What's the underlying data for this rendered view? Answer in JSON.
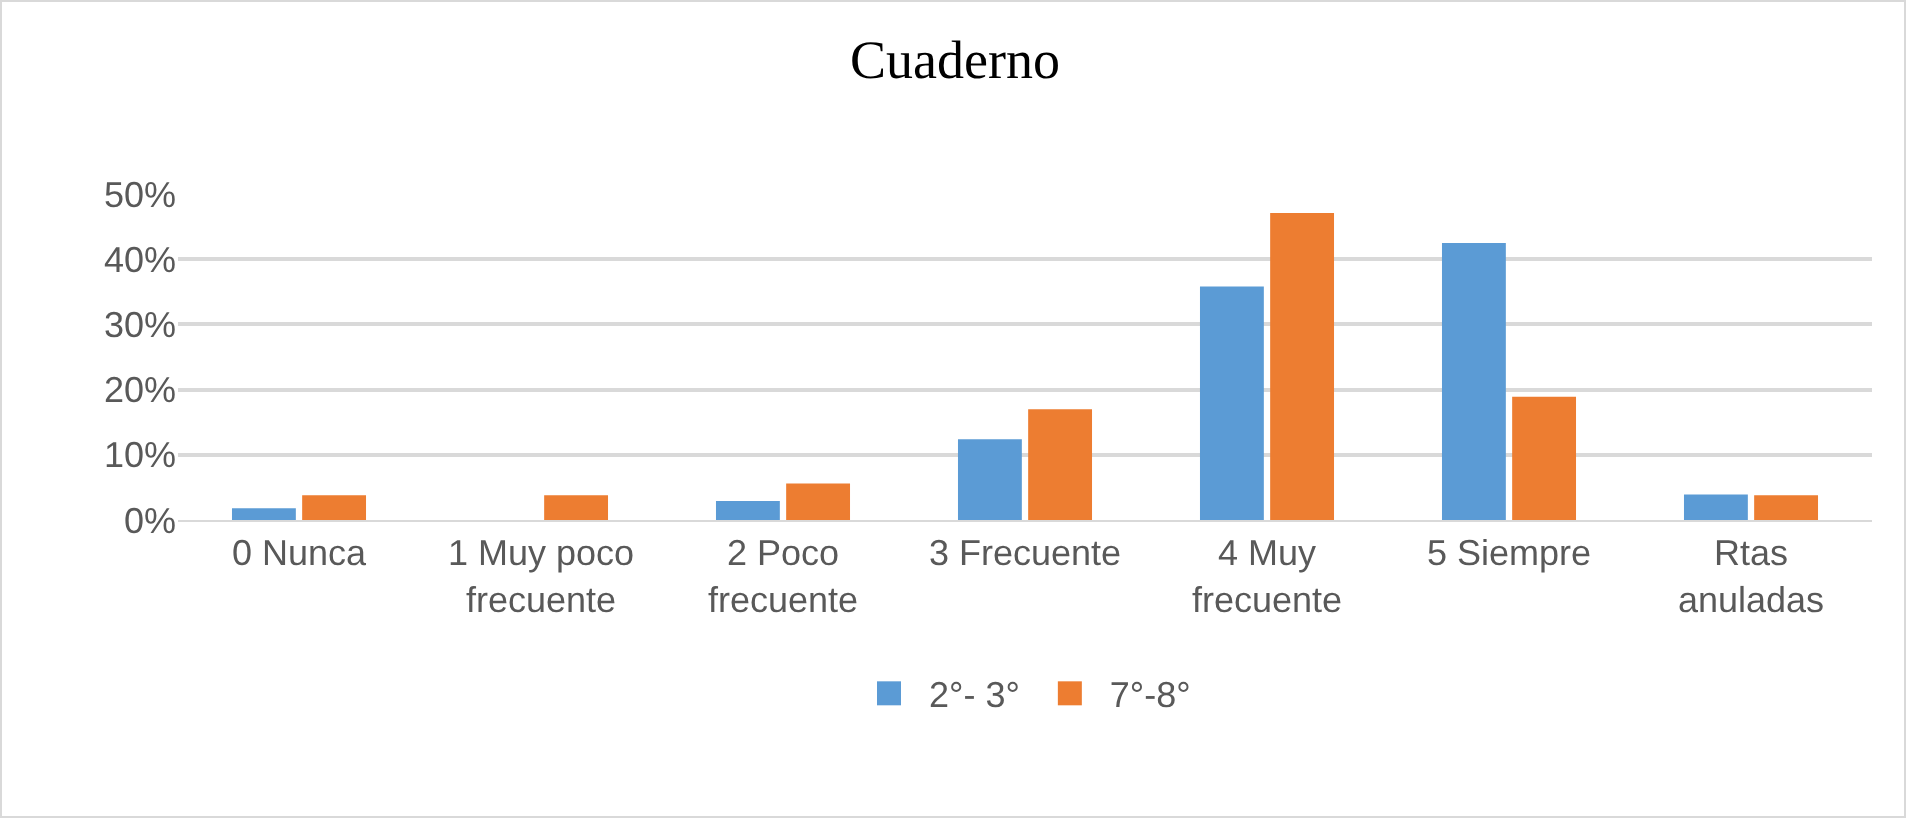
{
  "chart_data": {
    "type": "bar",
    "title": "Cuaderno",
    "categories": [
      "0 Nunca",
      "1 Muy poco frecuente",
      "2 Poco frecuente",
      "3 Frecuente",
      "4 Muy frecuente",
      "5 Siempre",
      "Rtas anuladas"
    ],
    "series": [
      {
        "name": "2°- 3°",
        "color": "#5b9bd5",
        "values": [
          1.8,
          0,
          2.9,
          12.4,
          35.8,
          42.5,
          3.9
        ]
      },
      {
        "name": "7°-8°",
        "color": "#ed7d31",
        "values": [
          3.8,
          3.8,
          5.6,
          17.0,
          47.1,
          18.9,
          3.8
        ]
      }
    ],
    "ylim": [
      0,
      50
    ],
    "yticks": [
      {
        "value": 0,
        "label": "0%"
      },
      {
        "value": 10,
        "label": "10%"
      },
      {
        "value": 20,
        "label": "20%"
      },
      {
        "value": 30,
        "label": "30%"
      },
      {
        "value": 40,
        "label": "40%"
      },
      {
        "value": 50,
        "label": "50%"
      }
    ],
    "grid": "y",
    "legend": "bottom"
  }
}
